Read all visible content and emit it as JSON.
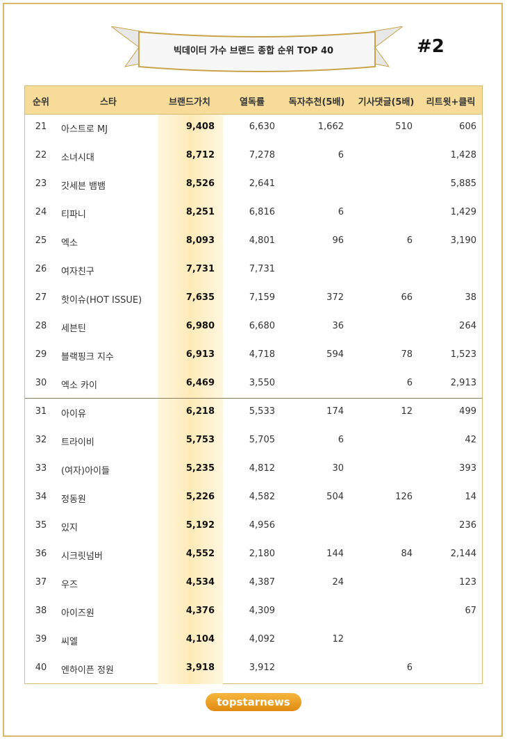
{
  "header": {
    "title": "빅데이터 가수 브랜드 종합 순위 TOP 40",
    "badge": "#2"
  },
  "table": {
    "columns": [
      "순위",
      "스타",
      "브랜드가치",
      "열독률",
      "독자추천(5배)",
      "기사댓글(5배)",
      "리트윗+클릭"
    ],
    "rows": [
      [
        "21",
        "아스트로 MJ",
        "9,408",
        "6,630",
        "1,662",
        "510",
        "606"
      ],
      [
        "22",
        "소녀시대",
        "8,712",
        "7,278",
        "6",
        null,
        "1,428"
      ],
      [
        "23",
        "갓세븐 뱀뱀",
        "8,526",
        "2,641",
        null,
        null,
        "5,885"
      ],
      [
        "24",
        "티파니",
        "8,251",
        "6,816",
        "6",
        null,
        "1,429"
      ],
      [
        "25",
        "엑소",
        "8,093",
        "4,801",
        "96",
        "6",
        "3,190"
      ],
      [
        "26",
        "여자친구",
        "7,731",
        "7,731",
        null,
        null,
        null
      ],
      [
        "27",
        "핫이슈(HOT ISSUE)",
        "7,635",
        "7,159",
        "372",
        "66",
        "38"
      ],
      [
        "28",
        "세븐틴",
        "6,980",
        "6,680",
        "36",
        null,
        "264"
      ],
      [
        "29",
        "블랙핑크 지수",
        "6,913",
        "4,718",
        "594",
        "78",
        "1,523"
      ],
      [
        "30",
        "엑소 카이",
        "6,469",
        "3,550",
        null,
        "6",
        "2,913"
      ],
      [
        "31",
        "아이유",
        "6,218",
        "5,533",
        "174",
        "12",
        "499"
      ],
      [
        "32",
        "트라이비",
        "5,753",
        "5,705",
        "6",
        null,
        "42"
      ],
      [
        "33",
        "(여자)아이들",
        "5,235",
        "4,812",
        "30",
        null,
        "393"
      ],
      [
        "34",
        "정동원",
        "5,226",
        "4,582",
        "504",
        "126",
        "14"
      ],
      [
        "35",
        "있지",
        "5,192",
        "4,956",
        null,
        null,
        "236"
      ],
      [
        "36",
        "시크릿넘버",
        "4,552",
        "2,180",
        "144",
        "84",
        "2,144"
      ],
      [
        "37",
        "우즈",
        "4,534",
        "4,387",
        "24",
        null,
        "123"
      ],
      [
        "38",
        "아이즈원",
        "4,376",
        "4,309",
        null,
        null,
        "67"
      ],
      [
        "39",
        "씨엘",
        "4,104",
        "4,092",
        "12",
        null,
        null
      ],
      [
        "40",
        "엔하이픈 정원",
        "3,918",
        "3,912",
        null,
        "6",
        null
      ]
    ]
  },
  "footer": {
    "logo": "topstarnews"
  }
}
